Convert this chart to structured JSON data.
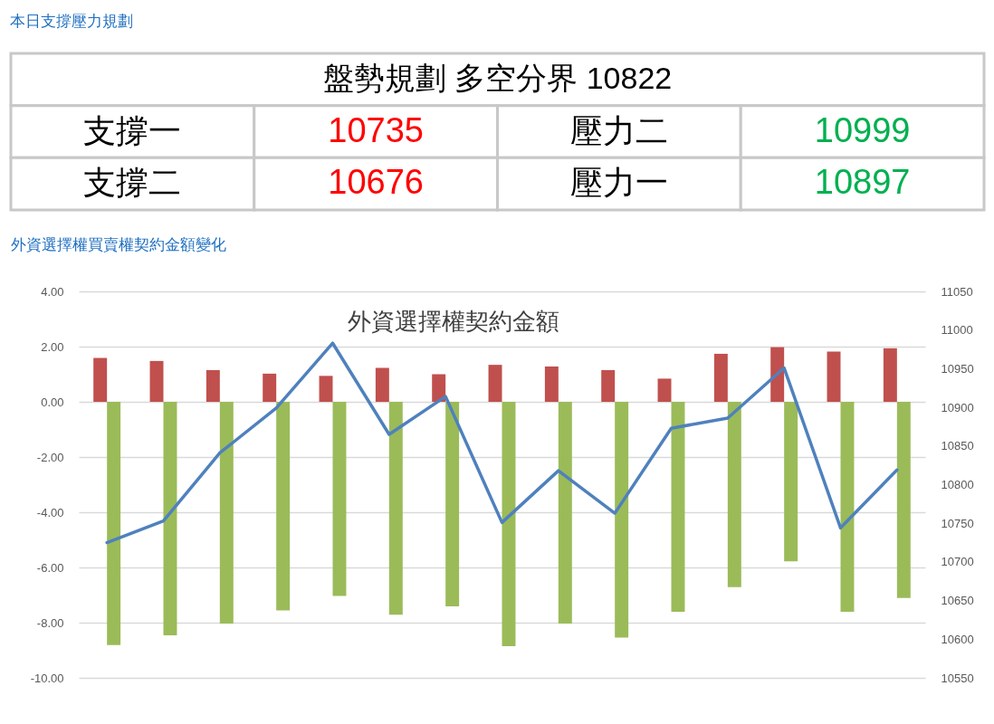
{
  "chart_data": [
    {
      "type": "other",
      "title": "本日支撐壓力規劃",
      "subtitle": "盤勢規劃 多空分界 10822",
      "annotations": [
        "支撐一",
        "10735",
        "壓力二",
        "10999",
        "支撐二",
        "10676",
        "壓力一",
        "10897"
      ]
    },
    {
      "type": "bar",
      "title": "外資選擇權買賣權契約金額變化",
      "subtitle": "外資選擇權契約金額",
      "categories": [
        null,
        null,
        null,
        null,
        null,
        null,
        null,
        null,
        null,
        null,
        null,
        null,
        null,
        null,
        null
      ],
      "series": [
        {
          "color": "#c0504d",
          "values": [
            1.59,
            1.48,
            1.15,
            1.02,
            0.94,
            1.23,
            1.0,
            1.34,
            1.28,
            1.15,
            0.84,
            1.74,
            1.98,
            1.82,
            1.94
          ]
        },
        {
          "color": "#9bbb59",
          "values": [
            -8.81,
            -8.46,
            -8.03,
            -7.56,
            -7.03,
            -7.71,
            -7.41,
            -8.85,
            -8.03,
            -8.54,
            -7.61,
            -6.71,
            -5.78,
            -7.61,
            -7.11
          ]
        },
        {
          "type": "line",
          "axis": "y2",
          "color": "#4f81bd",
          "values": [
            10725,
            10753,
            10841,
            10899,
            10983,
            10865,
            10914,
            10751,
            10818,
            10763,
            10873,
            10886,
            10951,
            10744,
            10819
          ]
        }
      ],
      "ylim": [
        -10,
        4
      ],
      "yticks": [
        {
          "value": -10,
          "label": "-10.00"
        },
        {
          "value": -8,
          "label": "-8.00"
        },
        {
          "value": -6,
          "label": "-6.00"
        },
        {
          "value": -4,
          "label": "-4.00"
        },
        {
          "value": -2,
          "label": "-2.00"
        },
        {
          "value": 0,
          "label": "0.00"
        },
        {
          "value": 2,
          "label": "2.00"
        },
        {
          "value": 4,
          "label": "4.00"
        }
      ],
      "y2lim": [
        10550,
        11050
      ],
      "y2ticks": [
        10550,
        10600,
        10650,
        10700,
        10750,
        10800,
        10850,
        10900,
        10950,
        11000,
        11050
      ],
      "grid": "y"
    }
  ]
}
